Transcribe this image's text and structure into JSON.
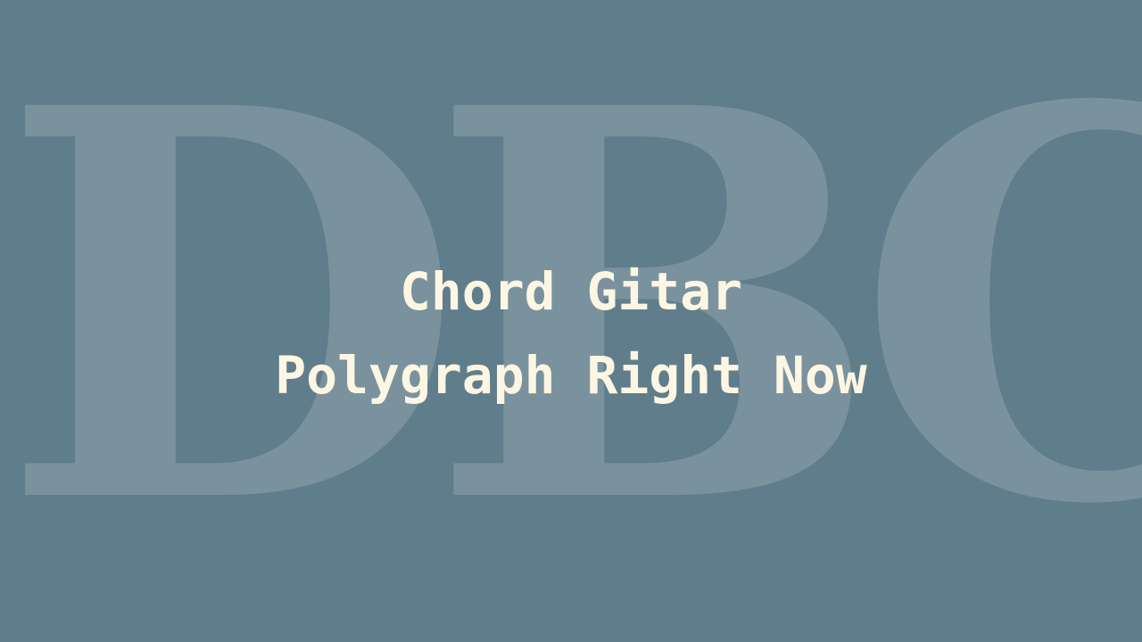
{
  "watermark": {
    "text": "DBC"
  },
  "title": {
    "line1": "Chord Gitar",
    "line2": "Polygraph Right Now"
  },
  "colors": {
    "background": "#607d8b",
    "title_text": "#fdf6e3",
    "watermark": "#ffffff"
  }
}
